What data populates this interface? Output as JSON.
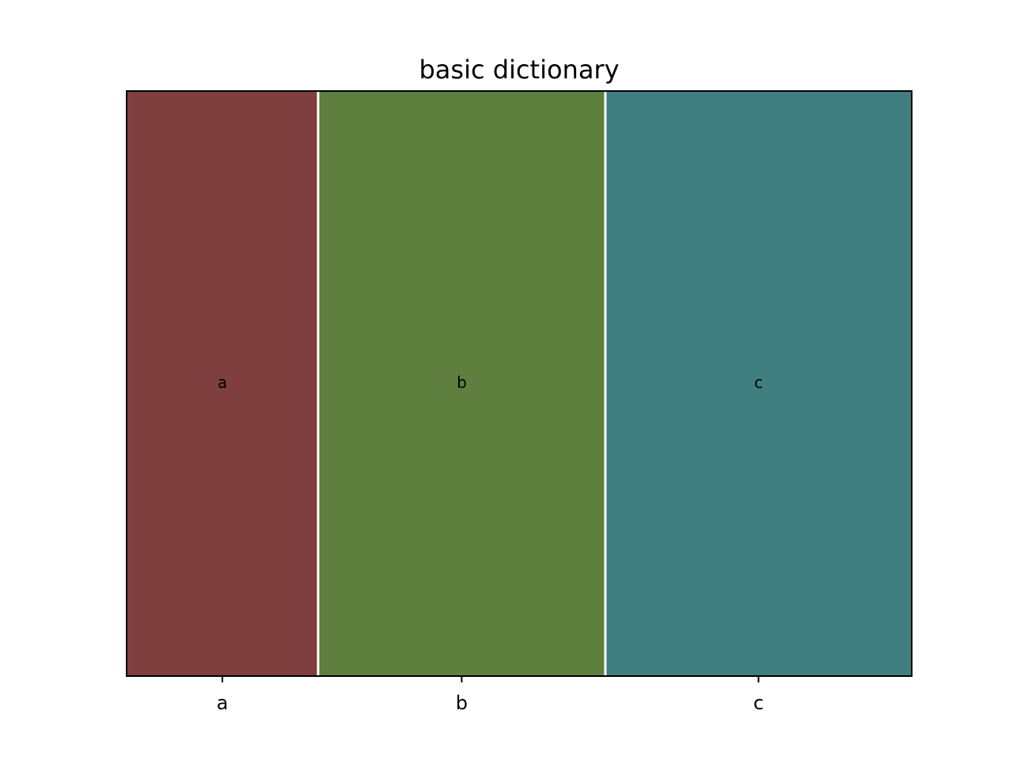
{
  "chart_data": {
    "type": "mosaic",
    "title": "basic dictionary",
    "xlabel": "",
    "ylabel": "",
    "categories": [
      "a",
      "b",
      "c"
    ],
    "values": [
      1,
      1.5,
      1.6
    ],
    "tile_labels": [
      "a",
      "b",
      "c"
    ],
    "colors": [
      "#7f3f3f",
      "#5f7f3f",
      "#3f7f7f"
    ],
    "grid": false,
    "legend": "none"
  }
}
